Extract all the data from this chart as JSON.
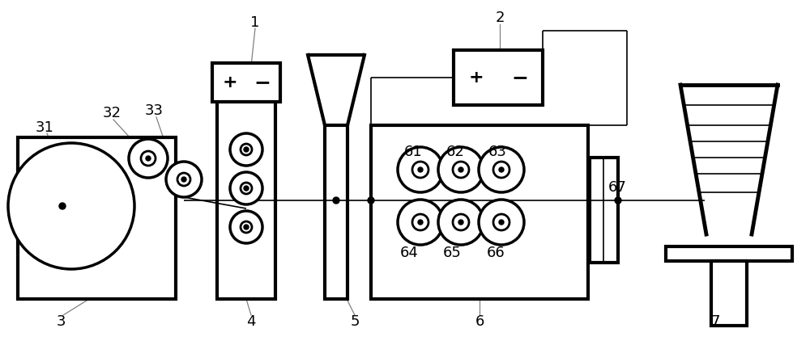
{
  "bg_color": "#ffffff",
  "lc": "#000000",
  "lw": 2.0,
  "tlw": 1.2,
  "fs": 13,
  "fig_w": 10.0,
  "fig_h": 4.22,
  "dpi": 100
}
